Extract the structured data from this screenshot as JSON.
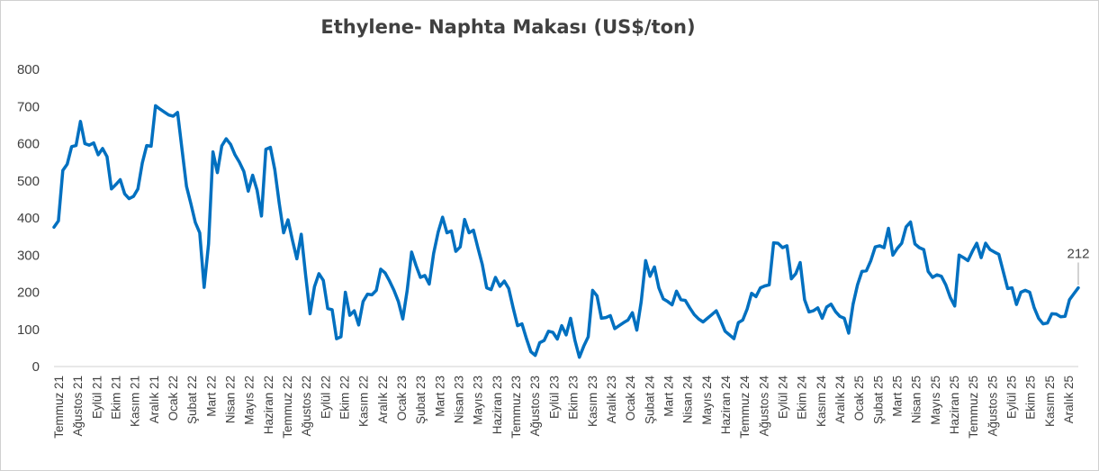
{
  "chart_data": {
    "type": "line",
    "title": "Ethylene- Naphta Makası (US$/ton)",
    "xlabel": "",
    "ylabel": "",
    "ylim": [
      0,
      800
    ],
    "yticks": [
      0,
      100,
      200,
      300,
      400,
      500,
      600,
      700,
      800
    ],
    "grid": false,
    "legend": "none",
    "line_color": "#0070C0",
    "x_tick_labels": [
      "Temmuz 21",
      "Ağustos 21",
      "Eylül 21",
      "Ekim 21",
      "Kasım 21",
      "Aralık 21",
      "Ocak 22",
      "Şubat 22",
      "Mart 22",
      "Nisan 22",
      "Mayıs 22",
      "Haziran 22",
      "Temmuz 22",
      "Ağustos 22",
      "Eylül 22",
      "Ekim 22",
      "Kasım 22",
      "Aralık 22",
      "Ocak 23",
      "Şubat 23",
      "Mart 23",
      "Nisan 23",
      "Mayıs 23",
      "Haziran 23",
      "Temmuz 23",
      "Ağustos 23",
      "Eylül 23",
      "Ekim 23",
      "Kasım 23",
      "Aralık 23",
      "Ocak 24",
      "Şubat 24",
      "Mart 24",
      "Nisan 24",
      "Mayıs 24",
      "Haziran 24",
      "Temmuz 24",
      "Ağustos 24",
      "Eylül 24",
      "Ekim 24",
      "Kasım 24",
      "Aralık 24",
      "Ocak 25",
      "Şubat 25",
      "Mart 25",
      "Nisan 25",
      "Mayıs 25",
      "Haziran 25",
      "Temmuz 25",
      "Ağustos 25",
      "Eylül 25",
      "Ekim 25",
      "Kasım 25",
      "Aralık 25"
    ],
    "values": [
      375,
      392,
      528,
      545,
      592,
      595,
      660,
      600,
      596,
      602,
      570,
      587,
      565,
      478,
      490,
      503,
      465,
      452,
      458,
      478,
      548,
      595,
      593,
      702,
      693,
      685,
      677,
      674,
      684,
      583,
      485,
      438,
      388,
      360,
      213,
      330,
      578,
      522,
      594,
      613,
      598,
      570,
      550,
      525,
      472,
      515,
      475,
      405,
      585,
      590,
      530,
      440,
      360,
      395,
      340,
      290,
      356,
      245,
      142,
      215,
      250,
      232,
      156,
      153,
      75,
      80,
      200,
      138,
      150,
      112,
      175,
      195,
      193,
      205,
      262,
      252,
      230,
      205,
      175,
      128,
      205,
      308,
      272,
      240,
      245,
      222,
      305,
      362,
      402,
      360,
      365,
      310,
      322,
      396,
      360,
      367,
      320,
      275,
      212,
      207,
      240,
      216,
      230,
      210,
      158,
      110,
      115,
      75,
      40,
      30,
      64,
      70,
      95,
      92,
      74,
      110,
      85,
      130,
      70,
      25,
      55,
      80,
      205,
      190,
      130,
      132,
      137,
      102,
      110,
      118,
      125,
      145,
      98,
      175,
      285,
      243,
      268,
      212,
      182,
      175,
      166,
      203,
      180,
      178,
      158,
      140,
      128,
      120,
      130,
      140,
      150,
      124,
      95,
      85,
      75,
      118,
      125,
      155,
      197,
      188,
      212,
      217,
      220,
      333,
      332,
      320,
      325,
      236,
      250,
      280,
      180,
      147,
      150,
      158,
      130,
      160,
      168,
      148,
      135,
      130,
      90,
      168,
      220,
      256,
      258,
      285,
      322,
      325,
      320,
      372,
      300,
      318,
      332,
      376,
      389,
      330,
      320,
      315,
      256,
      240,
      247,
      243,
      220,
      186,
      163,
      300,
      293,
      285,
      310,
      332,
      293,
      332,
      315,
      308,
      302,
      256,
      210,
      212,
      167,
      200,
      205,
      200,
      159,
      130,
      115,
      117,
      142,
      141,
      134,
      135,
      180,
      196,
      212
    ],
    "annotation": {
      "value_label": "212"
    }
  }
}
